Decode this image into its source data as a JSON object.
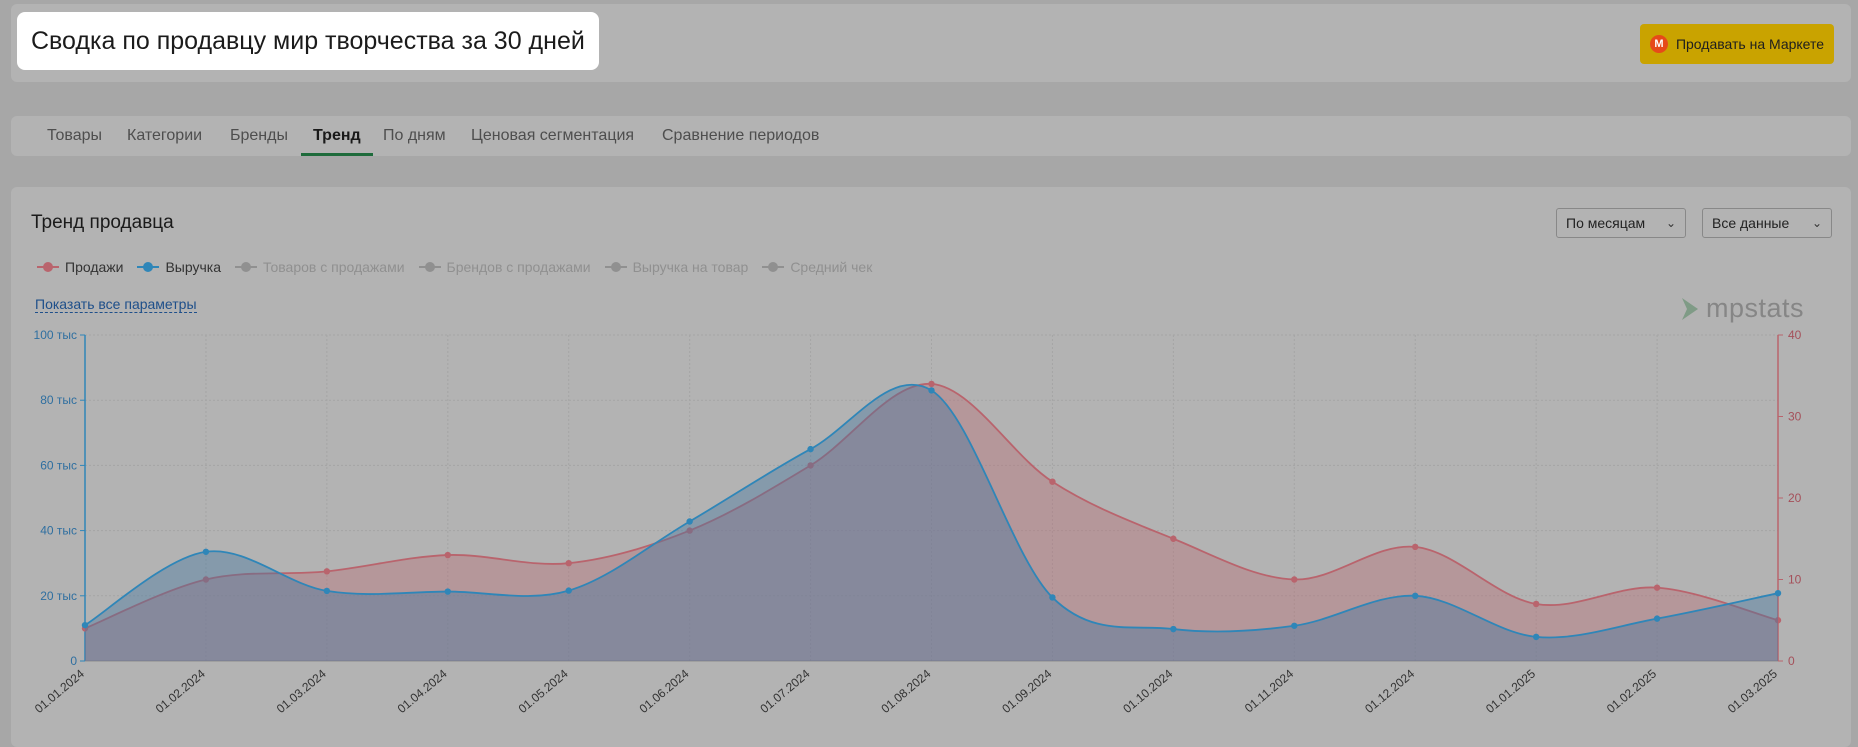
{
  "header": {
    "title": "Сводка по продавцу мир творчества за 30 дней",
    "sell_button_label": "Продавать на Маркете",
    "sell_button_icon": "market-logo-icon"
  },
  "tabs": [
    {
      "label": "Товары"
    },
    {
      "label": "Категории"
    },
    {
      "label": "Бренды"
    },
    {
      "label": "Тренд",
      "active": true
    },
    {
      "label": "По дням"
    },
    {
      "label": "Ценовая сегментация"
    },
    {
      "label": "Сравнение периодов"
    }
  ],
  "chart_panel": {
    "title": "Тренд продавца",
    "period_select": "По месяцам",
    "range_select": "Все данные",
    "show_all_link": "Показать все параметры",
    "watermark": "mpstats",
    "legend": [
      {
        "label": "Продажи",
        "active": true,
        "color": "#b9646d"
      },
      {
        "label": "Выручка",
        "active": true,
        "color": "#2f86b8"
      },
      {
        "label": "Товаров с продажами",
        "active": false
      },
      {
        "label": "Брендов с продажами",
        "active": false
      },
      {
        "label": "Выручка на товар",
        "active": false
      },
      {
        "label": "Средний чек",
        "active": false
      }
    ]
  },
  "chart_data": {
    "type": "area",
    "x": [
      "01.01.2024",
      "01.02.2024",
      "01.03.2024",
      "01.04.2024",
      "01.05.2024",
      "01.06.2024",
      "01.07.2024",
      "01.08.2024",
      "01.09.2024",
      "01.10.2024",
      "01.11.2024",
      "01.12.2024",
      "01.01.2025",
      "01.02.2025",
      "01.03.2025"
    ],
    "series": [
      {
        "name": "Выручка",
        "axis": "left",
        "color": "#2f86b8",
        "values": [
          11000,
          33500,
          21500,
          21300,
          21600,
          42800,
          65000,
          83000,
          19500,
          9800,
          10800,
          20000,
          7400,
          13000,
          20800
        ]
      },
      {
        "name": "Продажи",
        "axis": "right",
        "color": "#b9646d",
        "values": [
          4,
          10,
          11,
          13,
          12,
          16,
          24,
          34,
          22,
          15,
          10,
          14,
          7,
          9,
          5
        ]
      }
    ],
    "y_left": {
      "min": 0,
      "max": 100000,
      "ticks": [
        "0",
        "20 тыс",
        "40 тыс",
        "60 тыс",
        "80 тыс",
        "100 тыс"
      ]
    },
    "y_right": {
      "min": 0,
      "max": 40,
      "ticks": [
        "0",
        "10",
        "20",
        "30",
        "40"
      ]
    },
    "grid": true
  }
}
